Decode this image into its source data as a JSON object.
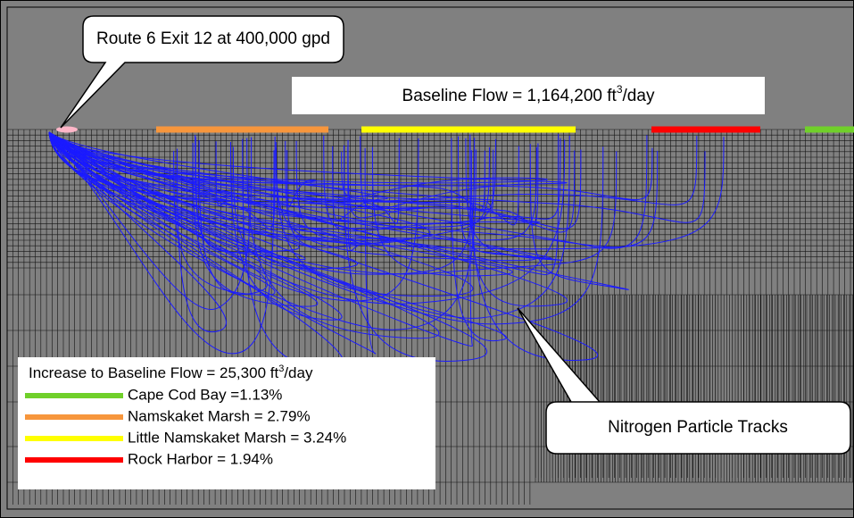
{
  "callouts": {
    "source": "Route 6 Exit 12 at 400,000 gpd",
    "tracks": "Nitrogen Particle Tracks"
  },
  "baseline": {
    "text": "Baseline Flow = 1,164,200 ft",
    "sup": "3",
    "unit": "/day"
  },
  "legend": {
    "title": {
      "text": "Increase to Baseline Flow = 25,300 ft",
      "sup": "3",
      "unit": "/day"
    },
    "items": [
      {
        "label": "Cape Cod Bay =1.13%",
        "color": "#70d02a"
      },
      {
        "label": "Namskaket Marsh = 2.79%",
        "color": "#f7963c"
      },
      {
        "label": "Little Namskaket Marsh = 3.24%",
        "color": "#ffff00"
      },
      {
        "label": "Rock Harbor = 1.94%",
        "color": "#ff0000"
      }
    ]
  }
}
